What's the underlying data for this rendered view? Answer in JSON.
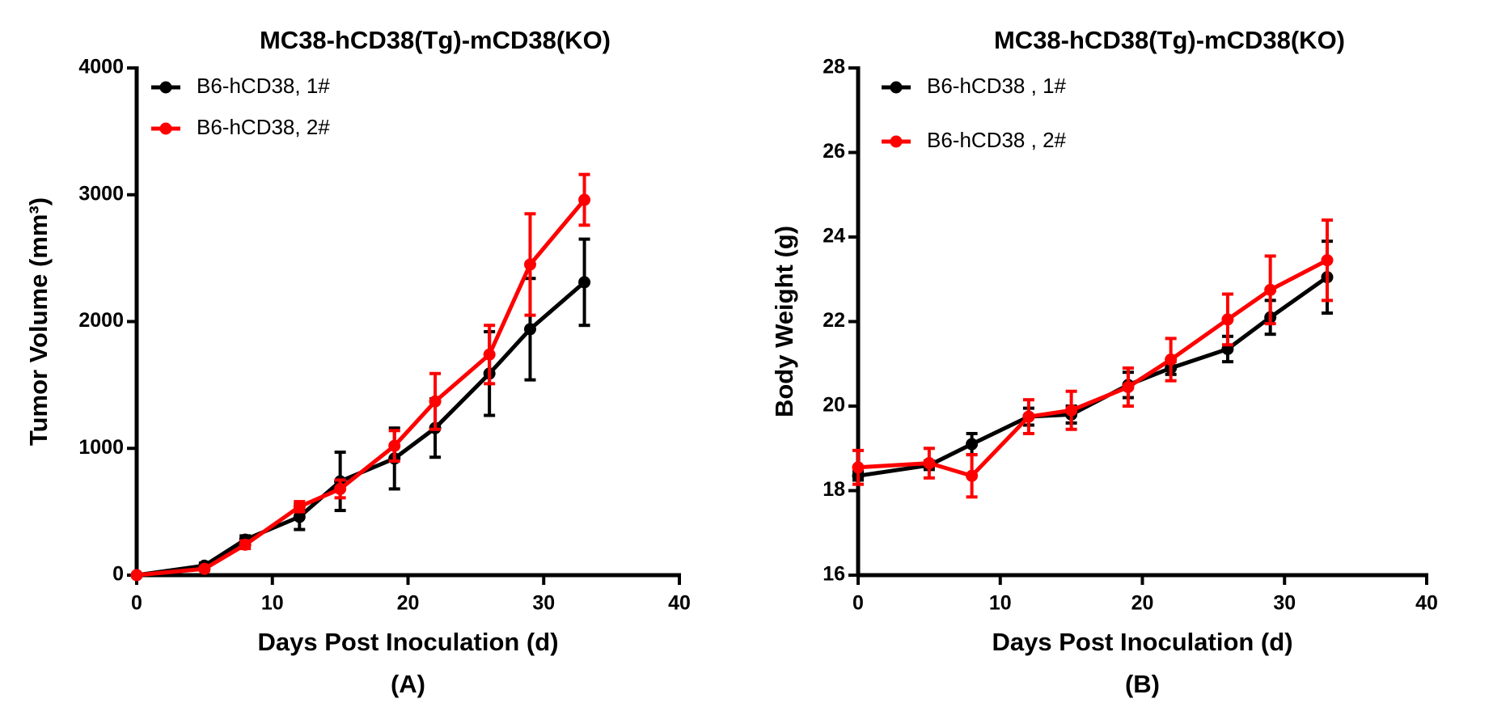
{
  "chart_data": [
    {
      "type": "line",
      "title": "MC38-hCD38(Tg)-mCD38(KO)",
      "x_label": "Days Post Inoculation (d)",
      "y_label": "Tumor Volume (mm³)",
      "caption": "(A)",
      "x": [
        0,
        5,
        8,
        12,
        15,
        19,
        22,
        26,
        29,
        33
      ],
      "xlim": [
        0,
        40
      ],
      "xticks": [
        0,
        10,
        20,
        30,
        40
      ],
      "ylim": [
        0,
        4000
      ],
      "yticks": [
        0,
        1000,
        2000,
        3000,
        4000
      ],
      "series": [
        {
          "name": "B6-hCD38, 1#",
          "color": "#000000",
          "values": [
            0,
            75,
            280,
            460,
            740,
            920,
            1160,
            1590,
            1940,
            2310
          ],
          "errors": [
            0,
            20,
            30,
            100,
            230,
            240,
            230,
            330,
            400,
            340
          ]
        },
        {
          "name": "B6-hCD38, 2#",
          "color": "#ff0000",
          "values": [
            0,
            50,
            240,
            540,
            680,
            1020,
            1370,
            1740,
            2450,
            2960
          ],
          "errors": [
            0,
            15,
            30,
            40,
            70,
            120,
            220,
            230,
            400,
            200
          ]
        }
      ]
    },
    {
      "type": "line",
      "title": "MC38-hCD38(Tg)-mCD38(KO)",
      "x_label": "Days Post Inoculation (d)",
      "y_label": "Body Weight (g)",
      "caption": "(B)",
      "x": [
        0,
        5,
        8,
        12,
        15,
        19,
        22,
        26,
        29,
        33
      ],
      "xlim": [
        0,
        40
      ],
      "xticks": [
        0,
        10,
        20,
        30,
        40
      ],
      "ylim": [
        16,
        28
      ],
      "yticks": [
        16,
        18,
        20,
        22,
        24,
        26,
        28
      ],
      "series": [
        {
          "name": "B6-hCD38 , 1#",
          "color": "#000000",
          "values": [
            18.35,
            18.6,
            19.1,
            19.75,
            19.8,
            20.5,
            20.9,
            21.35,
            22.1,
            23.05
          ],
          "errors": [
            0.1,
            0.1,
            0.25,
            0.2,
            0.2,
            0.3,
            0.15,
            0.3,
            0.4,
            0.85
          ]
        },
        {
          "name": "B6-hCD38 , 2#",
          "color": "#ff0000",
          "values": [
            18.55,
            18.65,
            18.35,
            19.75,
            19.9,
            20.45,
            21.1,
            22.05,
            22.75,
            23.45
          ],
          "errors": [
            0.4,
            0.35,
            0.5,
            0.4,
            0.45,
            0.45,
            0.5,
            0.6,
            0.8,
            0.95
          ]
        }
      ]
    }
  ]
}
